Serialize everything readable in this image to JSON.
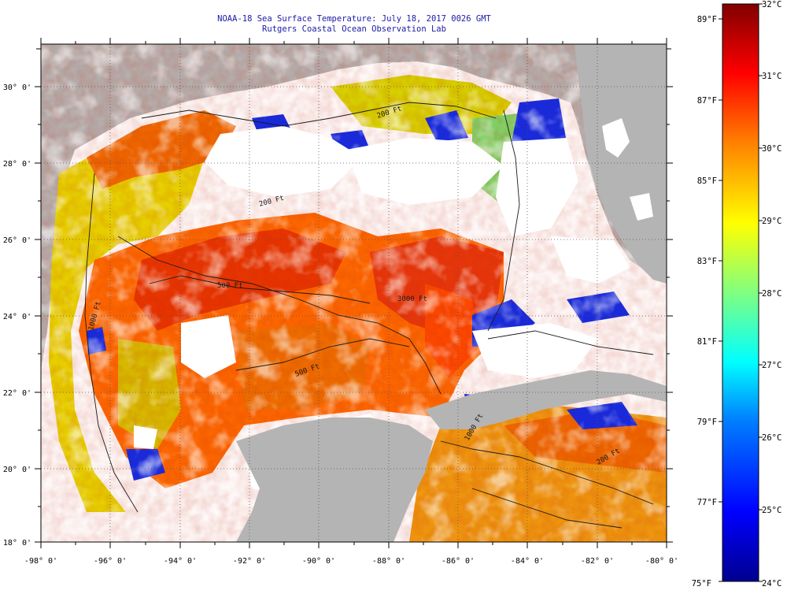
{
  "title": {
    "line1": "NOAA-18 Sea Surface Temperature:  July 18, 2017 0026 GMT",
    "line2": "Rutgers Coastal Ocean Observation Lab"
  },
  "map": {
    "longitude_range_deg": [
      -98,
      -80
    ],
    "latitude_range_deg": [
      18,
      31
    ],
    "longitude_ticks": [
      "-98° 0'",
      "-96° 0'",
      "-94° 0'",
      "-92° 0'",
      "-90° 0'",
      "-88° 0'",
      "-86° 0'",
      "-84° 0'",
      "-82° 0'",
      "-80° 0'"
    ],
    "latitude_ticks": [
      "18° 0'",
      "20° 0'",
      "22° 0'",
      "24° 0'",
      "26° 0'",
      "28° 0'",
      "30° 0'"
    ],
    "land_color": "#b4b4b4",
    "cloud_color": "#ffffff",
    "grid": "dotted",
    "contour_labels": [
      "200 Ft",
      "200 Ft",
      "3000 Ft",
      "500 Ft",
      "500 Ft",
      "1000 Ft",
      "1000 Ft",
      "200 Ft"
    ]
  },
  "colorbar": {
    "placement": "right",
    "celsius_labels": [
      "32°C",
      "31°C",
      "30°C",
      "29°C",
      "28°C",
      "27°C",
      "26°C",
      "25°C",
      "24°C"
    ],
    "fahrenheit_labels": [
      "89°F",
      "87°F",
      "85°F",
      "83°F",
      "81°F",
      "79°F",
      "77°F",
      "75°F"
    ],
    "gradient_colors": [
      "#00008f",
      "#0000ff",
      "#0080ff",
      "#00ffff",
      "#80ff80",
      "#ffff00",
      "#ff8000",
      "#ff0000",
      "#800000"
    ]
  }
}
